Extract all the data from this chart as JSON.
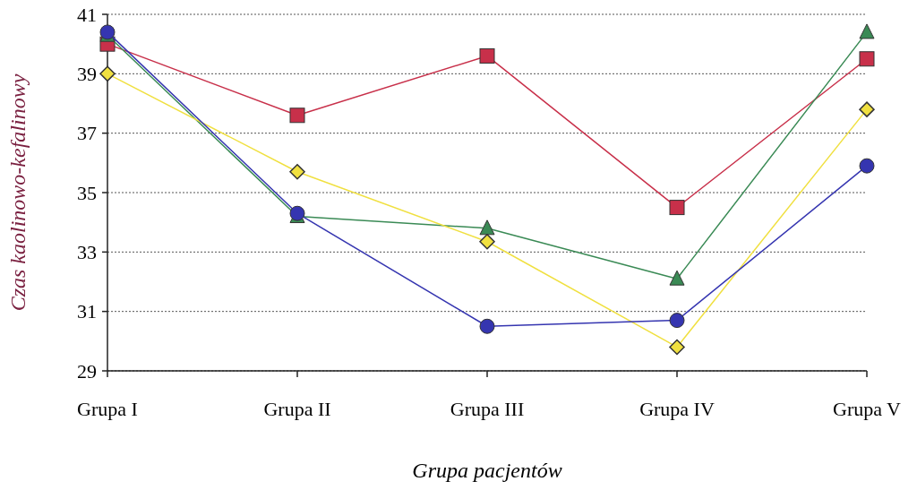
{
  "chart_data": {
    "type": "line",
    "xlabel": "Grupa pacjentów",
    "ylabel": "Czas kaolinowo-kefalinowy",
    "categories": [
      "Grupa I",
      "Grupa II",
      "Grupa III",
      "Grupa IV",
      "Grupa V"
    ],
    "series": [
      {
        "color": "#c8304a",
        "marker": "square",
        "values": [
          40.0,
          37.6,
          39.6,
          34.5,
          39.5
        ]
      },
      {
        "color": "#3a8a55",
        "marker": "triangle",
        "values": [
          40.3,
          34.2,
          33.8,
          32.1,
          40.4
        ]
      },
      {
        "color": "#f0e040",
        "marker": "diamond",
        "values": [
          39.0,
          35.7,
          33.35,
          29.8,
          37.8
        ]
      },
      {
        "color": "#3535b0",
        "marker": "circle",
        "values": [
          40.4,
          34.3,
          30.5,
          30.7,
          35.9
        ]
      }
    ],
    "ylim": [
      29,
      41
    ],
    "yticks": [
      29,
      31,
      33,
      35,
      37,
      39,
      41
    ],
    "grid": "y"
  }
}
